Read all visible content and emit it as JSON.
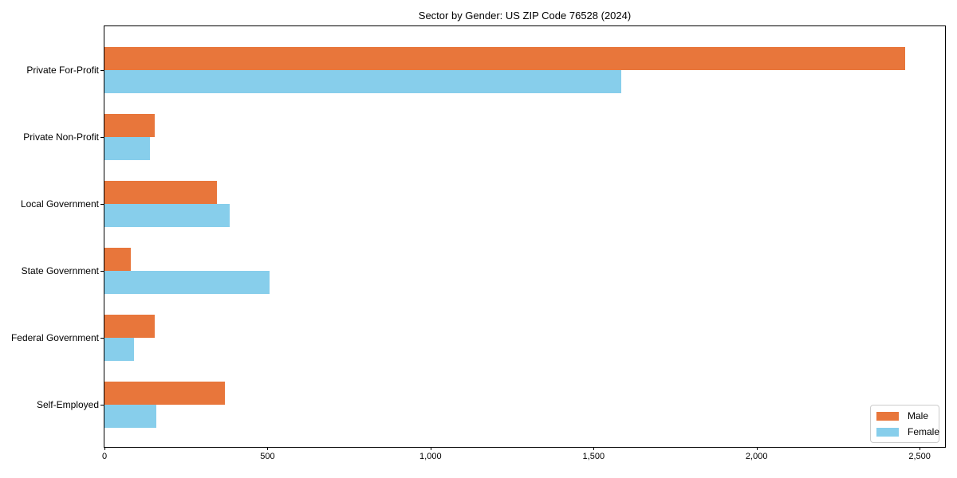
{
  "chart_data": {
    "type": "bar",
    "orientation": "horizontal",
    "title": "Sector by Gender: US ZIP Code 76528 (2024)",
    "categories": [
      "Private For-Profit",
      "Private Non-Profit",
      "Local Government",
      "State Government",
      "Federal Government",
      "Self-Employed"
    ],
    "series": [
      {
        "name": "Male",
        "color": "#e8763b",
        "values": [
          2455,
          155,
          345,
          80,
          155,
          370
        ]
      },
      {
        "name": "Female",
        "color": "#87ceeb",
        "values": [
          1585,
          140,
          385,
          505,
          90,
          160
        ]
      }
    ],
    "xlim": [
      0,
      2578
    ],
    "xticks": [
      0,
      500,
      1000,
      1500,
      2000,
      2500
    ],
    "xtick_labels": [
      "0",
      "500",
      "1,000",
      "1,500",
      "2,000",
      "2,500"
    ],
    "xlabel": "",
    "ylabel": "",
    "grid": false,
    "legend": {
      "position": "lower right",
      "entries": [
        "Male",
        "Female"
      ]
    }
  }
}
